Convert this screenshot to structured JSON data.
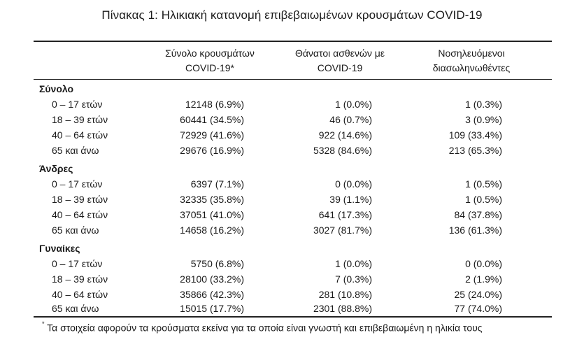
{
  "title": "Πίνακας 1: Ηλικιακή κατανομή επιβεβαιωμένων κρουσμάτων COVID-19",
  "columns": [
    "Σύνολο κρουσμάτων\nCOVID-19*",
    "Θάνατοι ασθενών με\nCOVID-19",
    "Νοσηλευόμενοι\nδιασωληνωθέντες"
  ],
  "sections": [
    {
      "label": "Σύνολο",
      "rows": [
        {
          "age": "0 – 17 ετών",
          "cases": "12148 (6.9%)",
          "deaths": "1 (0.0%)",
          "intubated": "1 (0.3%)"
        },
        {
          "age": "18 – 39 ετών",
          "cases": "60441 (34.5%)",
          "deaths": "46 (0.7%)",
          "intubated": "3 (0.9%)"
        },
        {
          "age": "40 – 64 ετών",
          "cases": "72929 (41.6%)",
          "deaths": "922 (14.6%)",
          "intubated": "109 (33.4%)"
        },
        {
          "age": "65 και άνω",
          "cases": "29676 (16.9%)",
          "deaths": "5328 (84.6%)",
          "intubated": "213 (65.3%)"
        }
      ]
    },
    {
      "label": "Άνδρες",
      "rows": [
        {
          "age": "0 – 17 ετών",
          "cases": "6397 (7.1%)",
          "deaths": "0 (0.0%)",
          "intubated": "1 (0.5%)"
        },
        {
          "age": "18 – 39 ετών",
          "cases": "32335 (35.8%)",
          "deaths": "39 (1.1%)",
          "intubated": "1 (0.5%)"
        },
        {
          "age": "40 – 64 ετών",
          "cases": "37051 (41.0%)",
          "deaths": "641 (17.3%)",
          "intubated": "84 (37.8%)"
        },
        {
          "age": "65 και άνω",
          "cases": "14658 (16.2%)",
          "deaths": "3027 (81.7%)",
          "intubated": "136 (61.3%)"
        }
      ]
    },
    {
      "label": "Γυναίκες",
      "rows": [
        {
          "age": "0 – 17 ετών",
          "cases": "5750 (6.8%)",
          "deaths": "1 (0.0%)",
          "intubated": "0 (0.0%)"
        },
        {
          "age": "18 – 39 ετών",
          "cases": "28100 (33.2%)",
          "deaths": "7 (0.3%)",
          "intubated": "2 (1.9%)"
        },
        {
          "age": "40 – 64 ετών",
          "cases": "35866 (42.3%)",
          "deaths": "281 (10.8%)",
          "intubated": "25 (24.0%)"
        },
        {
          "age": "65 και άνω",
          "cases": "15015 (17.7%)",
          "deaths": "2301 (88.8%)",
          "intubated": "77 (74.0%)"
        }
      ]
    }
  ],
  "footnote": {
    "marker": "*",
    "text": "Τα στοιχεία αφορούν τα κρούσματα εκείνα για τα οποία είναι γνωστή και επιβεβαιωμένη η ηλικία τους"
  }
}
